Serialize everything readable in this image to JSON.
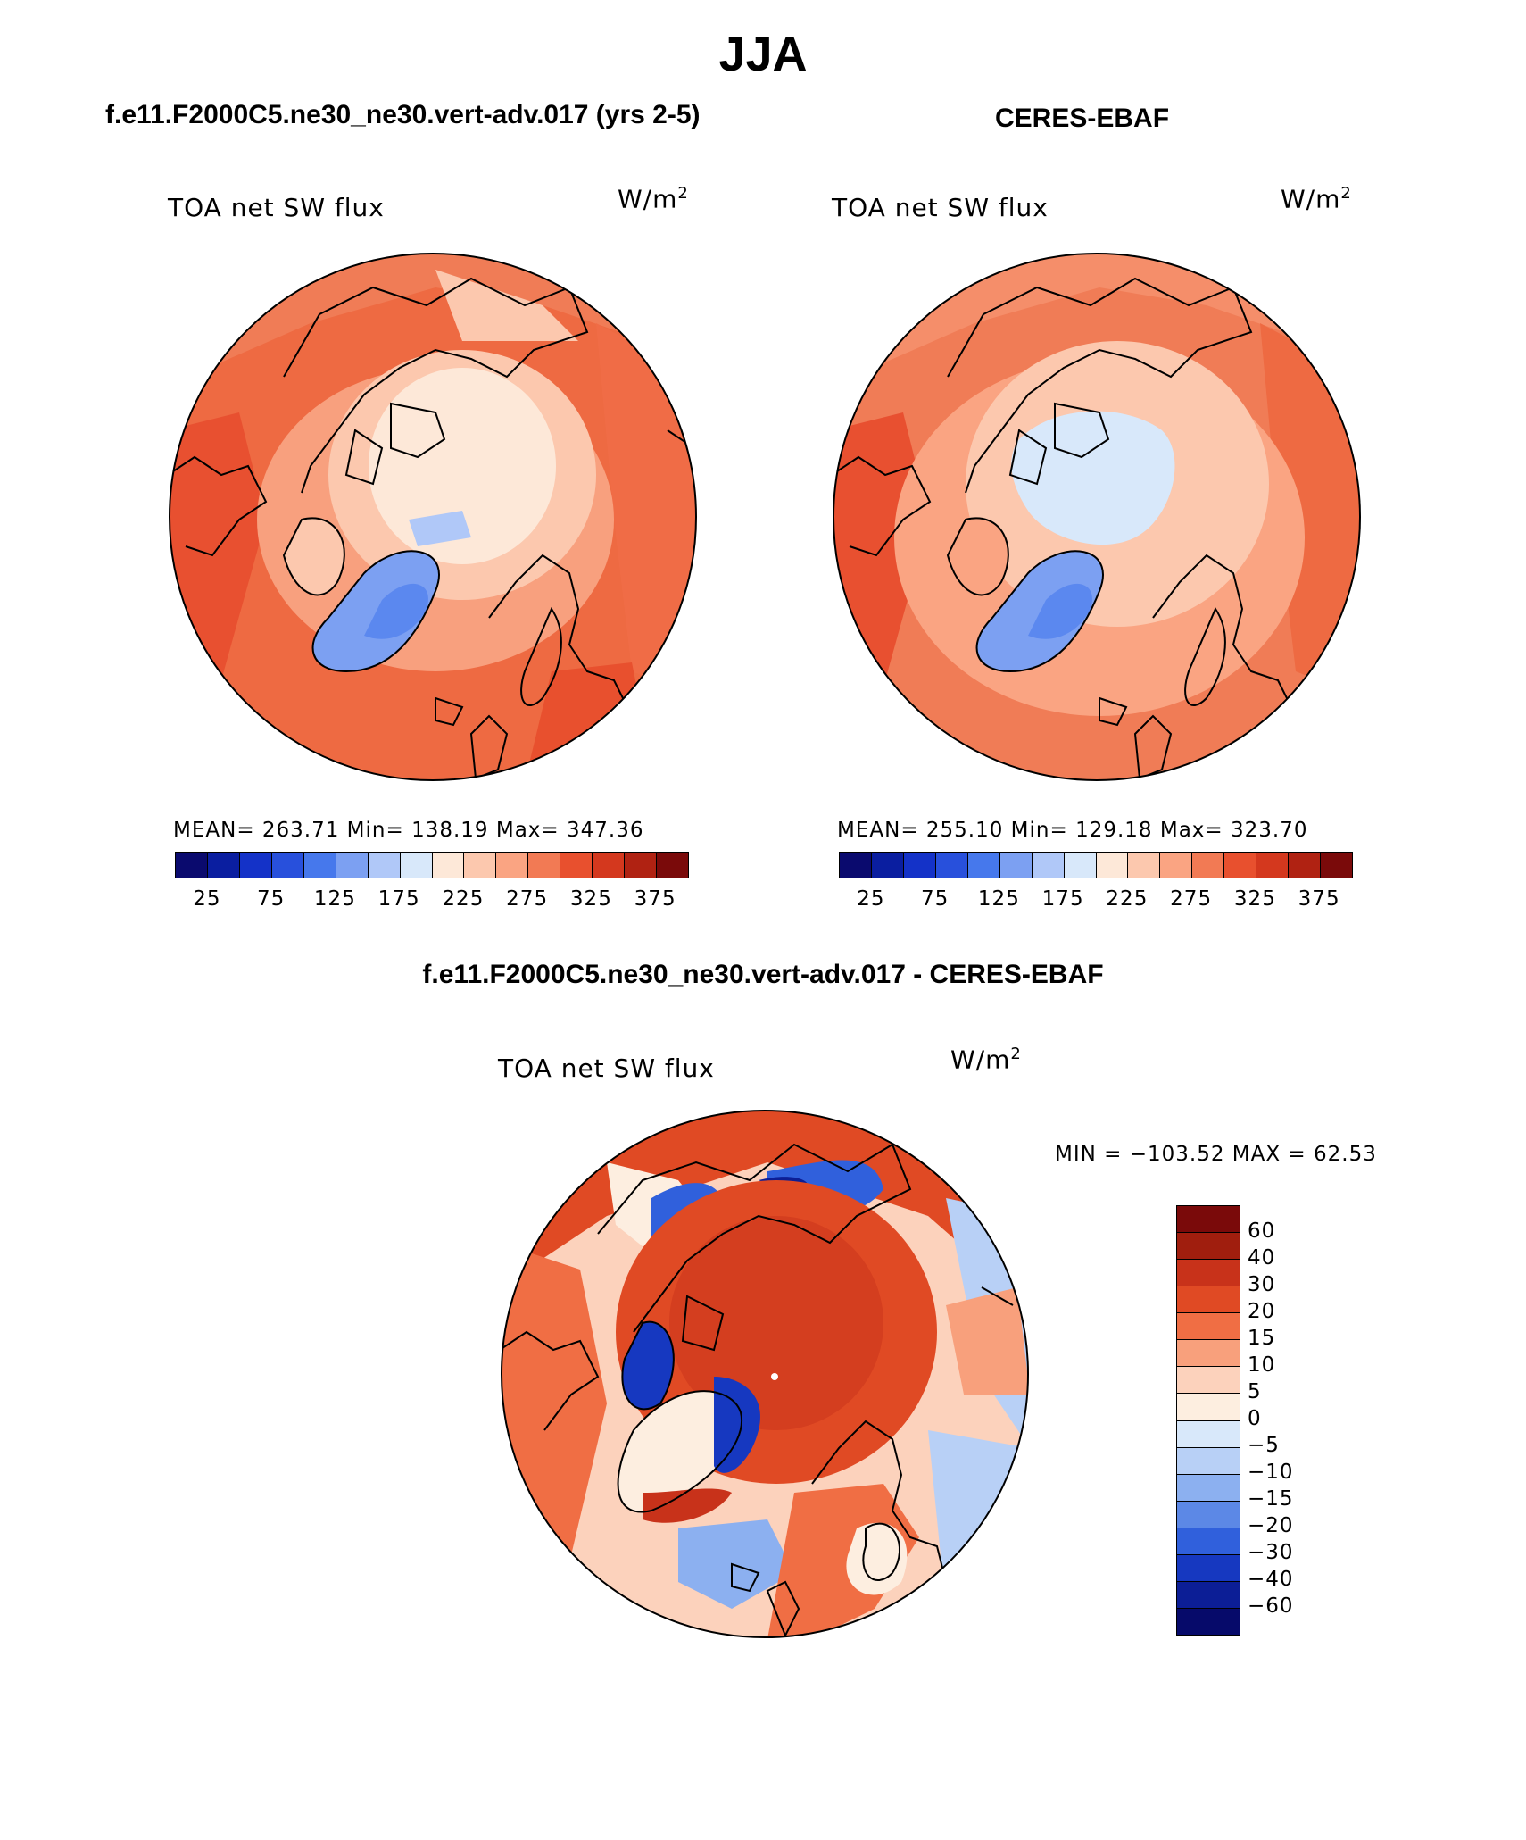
{
  "title": "JJA",
  "panels": [
    {
      "case": "f.e11.F2000C5.ne30_ne30.vert-adv.017 (yrs 2-5)",
      "variable": "TOA net SW flux",
      "units": "W/m",
      "units_exp": "2",
      "stats": "MEAN= 263.71   Min= 138.19   Max= 347.36",
      "colorbar_labels": [
        "25",
        "75",
        "125",
        "175",
        "225",
        "275",
        "325",
        "375"
      ]
    },
    {
      "case": "CERES-EBAF",
      "variable": "TOA net SW flux",
      "units": "W/m",
      "units_exp": "2",
      "stats": "MEAN= 255.10   Min= 129.18   Max= 323.70",
      "colorbar_labels": [
        "25",
        "75",
        "125",
        "175",
        "225",
        "275",
        "325",
        "375"
      ]
    }
  ],
  "difference": {
    "title": "f.e11.F2000C5.ne30_ne30.vert-adv.017 - CERES-EBAF",
    "variable": "TOA net SW flux",
    "units": "W/m",
    "units_exp": "2",
    "stats": "MIN = −103.52 MAX =   62.53",
    "colorbar_labels": [
      "60",
      "40",
      "30",
      "20",
      "15",
      "10",
      "5",
      "0",
      "−5",
      "−10",
      "−15",
      "−20",
      "−30",
      "−40",
      "−60"
    ]
  },
  "colors": {
    "abs_scale": [
      "#0a0a6e",
      "#0a1ea0",
      "#1432c8",
      "#2850dc",
      "#4678ec",
      "#7ca0f2",
      "#b0c8f8",
      "#d8e8fa",
      "#fde8d8",
      "#fcc8ae",
      "#faa482",
      "#f27a54",
      "#e8502e",
      "#d4381e",
      "#b02212",
      "#7a0a0a"
    ],
    "diff_scale": [
      "#7a0a0a",
      "#a01e0e",
      "#c8321a",
      "#e04a24",
      "#f06e44",
      "#f8a07c",
      "#fcd2bc",
      "#fdeee0",
      "#d8e8fa",
      "#b8d0f6",
      "#8cb0f0",
      "#5c88e6",
      "#3060dc",
      "#1638c0",
      "#0c1e96",
      "#060a6a"
    ]
  }
}
